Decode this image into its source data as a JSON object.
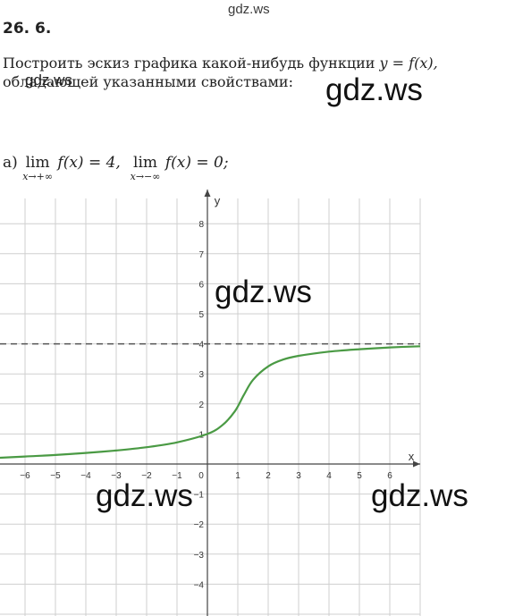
{
  "watermark": {
    "text": "gdz.ws"
  },
  "problem": {
    "number": "26. 6.",
    "line1": "Построить эскиз графика какой-нибудь функции ",
    "line1_formula": "y = f(x),",
    "line2": "обладающей указанными свойствами:"
  },
  "condition": {
    "part": "а)",
    "lim1_word": "lim",
    "lim1_sub": "x→+∞",
    "lim1_expr": " f(x) = 4,",
    "lim2_word": "lim",
    "lim2_sub": "x→−∞",
    "lim2_expr": " f(x) = 0;"
  },
  "chart_data": {
    "type": "line",
    "xlabel": "x",
    "ylabel": "y",
    "xlim": [
      -7,
      7
    ],
    "ylim": [
      -5,
      9
    ],
    "x_ticks": [
      -6,
      -5,
      -4,
      -3,
      -2,
      -1,
      1,
      2,
      3,
      4,
      5,
      6
    ],
    "y_ticks": [
      -4,
      -3,
      -2,
      -1,
      1,
      2,
      3,
      4,
      5,
      6,
      7,
      8
    ],
    "origin_label": "0",
    "grid": true,
    "asymptote": {
      "y": 4,
      "style": "dashed"
    },
    "curve_color": "#4a9a44",
    "asymptote_color": "#555555",
    "series": [
      {
        "points": [
          [
            -7.0,
            0.2
          ],
          [
            -6.0,
            0.25
          ],
          [
            -5.0,
            0.3
          ],
          [
            -4.0,
            0.37
          ],
          [
            -3.0,
            0.45
          ],
          [
            -2.0,
            0.56
          ],
          [
            -1.0,
            0.72
          ],
          [
            0.0,
            1.0
          ],
          [
            0.5,
            1.3
          ],
          [
            0.9,
            1.75
          ],
          [
            1.2,
            2.3
          ],
          [
            1.5,
            2.8
          ],
          [
            2.0,
            3.25
          ],
          [
            2.5,
            3.48
          ],
          [
            3.0,
            3.6
          ],
          [
            4.0,
            3.74
          ],
          [
            5.0,
            3.82
          ],
          [
            6.0,
            3.88
          ],
          [
            7.0,
            3.92
          ]
        ]
      }
    ]
  }
}
